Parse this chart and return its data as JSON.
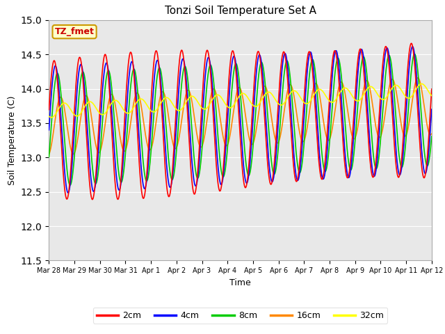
{
  "title": "Tonzi Soil Temperature Set A",
  "xlabel": "Time",
  "ylabel": "Soil Temperature (C)",
  "ylim": [
    11.5,
    15.0
  ],
  "yticks": [
    11.5,
    12.0,
    12.5,
    13.0,
    13.5,
    14.0,
    14.5,
    15.0
  ],
  "legend_label": "TZ_fmet",
  "line_colors": {
    "2cm": "#ff0000",
    "4cm": "#0000ff",
    "8cm": "#00cc00",
    "16cm": "#ff8800",
    "32cm": "#ffff00"
  },
  "line_labels": [
    "2cm",
    "4cm",
    "8cm",
    "16cm",
    "32cm"
  ],
  "xtick_labels": [
    "Mar 28",
    "Mar 29",
    "Mar 30",
    "Mar 31",
    "Apr 1",
    "Apr 2",
    "Apr 3",
    "Apr 4",
    "Apr 5",
    "Apr 6",
    "Apr 7",
    "Apr 8",
    "Apr 9",
    "Apr 10",
    "Apr 11",
    "Apr 12"
  ],
  "bg_color": "#e8e8e8",
  "fig_bg_color": "#ffffff",
  "legend_box_color": "#ffffcc",
  "legend_box_edge": "#cc9900",
  "legend_text_color": "#cc0000"
}
